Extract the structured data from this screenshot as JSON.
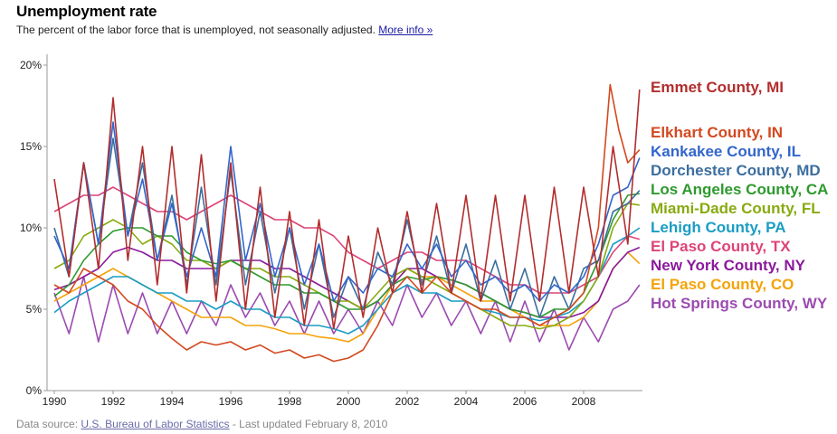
{
  "header": {
    "title": "Unemployment rate",
    "subtitle": "The percent of the labor force that is unemployed, not seasonally adjusted.",
    "more_info_link": "More info »"
  },
  "footer": {
    "source_prefix": "Data source:",
    "source_link": "U.S. Bureau of Labor Statistics",
    "updated": "- Last updated February 8, 2010"
  },
  "chart_data": {
    "type": "line",
    "title": "Unemployment rate",
    "xlabel": "",
    "ylabel": "",
    "x_ticks": [
      "1990",
      "1992",
      "1994",
      "1996",
      "1998",
      "2000",
      "2002",
      "2004",
      "2006",
      "2008"
    ],
    "y_ticks": [
      "0%",
      "5%",
      "10%",
      "15%",
      "20%"
    ],
    "xlim": [
      1990,
      2010
    ],
    "ylim": [
      0,
      20
    ],
    "grid": false,
    "legend_placement": "right (labels at line ends)",
    "series": [
      {
        "name": "Emmet County, MI",
        "color": "#b32d2d",
        "label_y": 18.6,
        "x": [
          1990.0,
          1990.5,
          1991.0,
          1991.5,
          1992.0,
          1992.5,
          1993.0,
          1993.5,
          1994.0,
          1994.5,
          1995.0,
          1995.5,
          1996.0,
          1996.5,
          1997.0,
          1997.5,
          1998.0,
          1998.5,
          1999.0,
          1999.5,
          2000.0,
          2000.5,
          2001.0,
          2001.5,
          2002.0,
          2002.5,
          2003.0,
          2003.5,
          2004.0,
          2004.5,
          2005.0,
          2005.5,
          2006.0,
          2006.5,
          2007.0,
          2007.5,
          2008.0,
          2008.5,
          2009.0,
          2009.5,
          2009.9
        ],
        "y": [
          13.0,
          7.0,
          14.0,
          7.5,
          18.0,
          8.0,
          15.0,
          6.5,
          15.0,
          6.0,
          14.5,
          5.5,
          14.0,
          5.0,
          12.5,
          4.5,
          11.0,
          4.0,
          10.5,
          3.8,
          9.5,
          4.5,
          10.0,
          6.0,
          11.0,
          6.0,
          11.5,
          6.0,
          12.0,
          5.5,
          12.0,
          5.5,
          12.0,
          5.5,
          12.5,
          6.0,
          12.5,
          7.0,
          15.0,
          9.0,
          18.5
        ]
      },
      {
        "name": "Elkhart County, IN",
        "color": "#d2491f",
        "label_y": 14.9,
        "x": [
          1990.0,
          1990.5,
          1991.0,
          1991.5,
          1992.0,
          1992.5,
          1993.0,
          1993.5,
          1994.0,
          1994.5,
          1995.0,
          1995.5,
          1996.0,
          1996.5,
          1997.0,
          1997.5,
          1998.0,
          1998.5,
          1999.0,
          1999.5,
          2000.0,
          2000.5,
          2001.0,
          2001.5,
          2002.0,
          2002.5,
          2003.0,
          2003.5,
          2004.0,
          2004.5,
          2005.0,
          2005.5,
          2006.0,
          2006.5,
          2007.0,
          2007.5,
          2008.0,
          2008.5,
          2008.9,
          2009.2,
          2009.5,
          2009.9
        ],
        "y": [
          6.5,
          6.0,
          7.5,
          7.0,
          6.5,
          5.5,
          5.0,
          4.0,
          3.2,
          2.5,
          3.0,
          2.8,
          3.0,
          2.5,
          2.8,
          2.3,
          2.5,
          2.0,
          2.2,
          1.8,
          2.0,
          2.5,
          4.0,
          6.0,
          7.0,
          6.0,
          7.0,
          6.0,
          5.5,
          5.0,
          5.0,
          4.5,
          4.5,
          4.0,
          4.5,
          5.0,
          6.0,
          10.0,
          18.8,
          16.0,
          14.0,
          14.8
        ]
      },
      {
        "name": "Kankakee County, IL",
        "color": "#3366cc",
        "label_y": 14.3,
        "x": [
          1990.0,
          1990.5,
          1991.0,
          1991.5,
          1992.0,
          1992.5,
          1993.0,
          1993.5,
          1994.0,
          1994.5,
          1995.0,
          1995.5,
          1996.0,
          1996.5,
          1997.0,
          1997.5,
          1998.0,
          1998.5,
          1999.0,
          1999.5,
          2000.0,
          2000.5,
          2001.0,
          2001.5,
          2002.0,
          2002.5,
          2003.0,
          2003.5,
          2004.0,
          2004.5,
          2005.0,
          2005.5,
          2006.0,
          2006.5,
          2007.0,
          2007.5,
          2008.0,
          2008.5,
          2009.0,
          2009.5,
          2009.9
        ],
        "y": [
          9.5,
          7.5,
          14.0,
          9.0,
          16.5,
          9.5,
          13.0,
          8.0,
          11.5,
          7.0,
          10.0,
          7.0,
          15.0,
          8.0,
          11.5,
          7.0,
          10.0,
          6.5,
          9.0,
          5.5,
          7.0,
          6.0,
          7.5,
          7.0,
          9.0,
          7.5,
          9.0,
          7.0,
          8.0,
          6.5,
          7.0,
          6.0,
          6.5,
          5.5,
          6.5,
          6.0,
          7.0,
          9.0,
          12.0,
          12.5,
          14.3
        ]
      },
      {
        "name": "Dorchester County, MD",
        "color": "#3c6e9f",
        "label_y": 12.3,
        "x": [
          1990.0,
          1990.5,
          1991.0,
          1991.5,
          1992.0,
          1992.5,
          1993.0,
          1993.5,
          1994.0,
          1994.5,
          1995.0,
          1995.5,
          1996.0,
          1996.5,
          1997.0,
          1997.5,
          1998.0,
          1998.5,
          1999.0,
          1999.5,
          2000.0,
          2000.5,
          2001.0,
          2001.5,
          2002.0,
          2002.5,
          2003.0,
          2003.5,
          2004.0,
          2004.5,
          2005.0,
          2005.5,
          2006.0,
          2006.5,
          2007.0,
          2007.5,
          2008.0,
          2008.5,
          2009.0,
          2009.5,
          2009.9
        ],
        "y": [
          10.0,
          7.0,
          14.0,
          9.0,
          15.5,
          9.5,
          14.0,
          8.0,
          12.0,
          6.5,
          12.5,
          6.5,
          13.5,
          6.5,
          11.0,
          6.0,
          10.0,
          5.0,
          9.0,
          4.5,
          7.0,
          5.0,
          8.5,
          6.5,
          10.5,
          6.5,
          9.5,
          6.0,
          9.0,
          5.5,
          8.0,
          5.0,
          7.5,
          4.5,
          7.0,
          5.0,
          7.5,
          8.0,
          11.0,
          11.5,
          12.3
        ]
      },
      {
        "name": "Los Angeles County, CA",
        "color": "#2e9a2e",
        "label_y": 12.1,
        "x": [
          1990.0,
          1990.5,
          1991.0,
          1991.5,
          1992.0,
          1992.5,
          1993.0,
          1993.5,
          1994.0,
          1994.5,
          1995.0,
          1995.5,
          1996.0,
          1996.5,
          1997.0,
          1997.5,
          1998.0,
          1998.5,
          1999.0,
          1999.5,
          2000.0,
          2000.5,
          2001.0,
          2001.5,
          2002.0,
          2002.5,
          2003.0,
          2003.5,
          2004.0,
          2004.5,
          2005.0,
          2005.5,
          2006.0,
          2006.5,
          2007.0,
          2007.5,
          2008.0,
          2008.5,
          2009.0,
          2009.5,
          2009.9
        ],
        "y": [
          5.8,
          6.5,
          8.0,
          9.0,
          9.8,
          10.0,
          10.0,
          9.5,
          9.5,
          8.5,
          8.0,
          7.8,
          8.0,
          7.5,
          7.0,
          6.5,
          6.5,
          6.0,
          6.0,
          5.5,
          5.0,
          5.0,
          5.5,
          6.5,
          7.0,
          6.8,
          7.0,
          6.8,
          6.5,
          6.0,
          5.5,
          5.0,
          4.8,
          4.5,
          5.0,
          5.0,
          6.0,
          8.0,
          10.5,
          12.0,
          12.1
        ]
      },
      {
        "name": "Miami-Dade County, FL",
        "color": "#88aa11",
        "label_y": 11.4,
        "x": [
          1990.0,
          1990.5,
          1991.0,
          1991.5,
          1992.0,
          1992.5,
          1993.0,
          1993.5,
          1994.0,
          1994.5,
          1995.0,
          1995.5,
          1996.0,
          1996.5,
          1997.0,
          1997.5,
          1998.0,
          1998.5,
          1999.0,
          1999.5,
          2000.0,
          2000.5,
          2001.0,
          2001.5,
          2002.0,
          2002.5,
          2003.0,
          2003.5,
          2004.0,
          2004.5,
          2005.0,
          2005.5,
          2006.0,
          2006.5,
          2007.0,
          2007.5,
          2008.0,
          2008.5,
          2009.0,
          2009.5,
          2009.9
        ],
        "y": [
          7.5,
          8.0,
          9.5,
          10.0,
          10.5,
          10.0,
          9.0,
          9.5,
          9.0,
          8.0,
          8.0,
          7.5,
          8.0,
          7.5,
          7.5,
          7.0,
          7.0,
          6.5,
          6.0,
          5.5,
          5.5,
          5.0,
          6.0,
          7.0,
          7.5,
          7.0,
          6.5,
          6.0,
          5.5,
          5.0,
          4.5,
          4.0,
          4.0,
          3.8,
          4.0,
          4.5,
          5.5,
          7.0,
          10.0,
          11.5,
          11.4
        ]
      },
      {
        "name": "Lehigh County, PA",
        "color": "#1a9dc4",
        "label_y": 10.2,
        "x": [
          1990.0,
          1990.5,
          1991.0,
          1991.5,
          1992.0,
          1992.5,
          1993.0,
          1993.5,
          1994.0,
          1994.5,
          1995.0,
          1995.5,
          1996.0,
          1996.5,
          1997.0,
          1997.5,
          1998.0,
          1998.5,
          1999.0,
          1999.5,
          2000.0,
          2000.5,
          2001.0,
          2001.5,
          2002.0,
          2002.5,
          2003.0,
          2003.5,
          2004.0,
          2004.5,
          2005.0,
          2005.5,
          2006.0,
          2006.5,
          2007.0,
          2007.5,
          2008.0,
          2008.5,
          2009.0,
          2009.5,
          2009.9
        ],
        "y": [
          4.8,
          5.5,
          6.0,
          6.5,
          7.0,
          7.0,
          6.5,
          6.0,
          6.0,
          5.5,
          5.5,
          5.0,
          5.5,
          5.0,
          5.0,
          4.5,
          4.5,
          4.0,
          4.0,
          3.8,
          3.5,
          4.0,
          5.0,
          6.0,
          6.5,
          6.0,
          6.0,
          5.5,
          5.5,
          5.0,
          4.8,
          4.5,
          4.5,
          4.3,
          4.5,
          4.8,
          5.5,
          7.0,
          9.0,
          9.5,
          10.0
        ]
      },
      {
        "name": "El Paso County, TX",
        "color": "#dd4477",
        "label_y": 9.5,
        "x": [
          1990.0,
          1990.5,
          1991.0,
          1991.5,
          1992.0,
          1992.5,
          1993.0,
          1993.5,
          1994.0,
          1994.5,
          1995.0,
          1995.5,
          1996.0,
          1996.5,
          1997.0,
          1997.5,
          1998.0,
          1998.5,
          1999.0,
          1999.5,
          2000.0,
          2000.5,
          2001.0,
          2001.5,
          2002.0,
          2002.5,
          2003.0,
          2003.5,
          2004.0,
          2004.5,
          2005.0,
          2005.5,
          2006.0,
          2006.5,
          2007.0,
          2007.5,
          2008.0,
          2008.5,
          2009.0,
          2009.5,
          2009.9
        ],
        "y": [
          11.0,
          11.5,
          12.0,
          12.0,
          12.5,
          12.0,
          11.5,
          11.0,
          11.0,
          10.5,
          11.0,
          11.5,
          12.0,
          11.5,
          11.0,
          10.5,
          10.5,
          10.0,
          10.0,
          9.5,
          8.5,
          8.0,
          7.5,
          8.0,
          8.5,
          8.5,
          8.0,
          8.0,
          8.0,
          7.5,
          7.0,
          6.5,
          6.5,
          6.0,
          6.0,
          6.0,
          6.5,
          7.0,
          8.5,
          9.5,
          9.3
        ]
      },
      {
        "name": "New York County, NY",
        "color": "#8a1a9b",
        "label_y": 8.8,
        "x": [
          1990.0,
          1990.5,
          1991.0,
          1991.5,
          1992.0,
          1992.5,
          1993.0,
          1993.5,
          1994.0,
          1994.5,
          1995.0,
          1995.5,
          1996.0,
          1996.5,
          1997.0,
          1997.5,
          1998.0,
          1998.5,
          1999.0,
          1999.5,
          2000.0,
          2000.5,
          2001.0,
          2001.5,
          2002.0,
          2002.5,
          2003.0,
          2003.5,
          2004.0,
          2004.5,
          2005.0,
          2005.5,
          2006.0,
          2006.5,
          2007.0,
          2007.5,
          2008.0,
          2008.5,
          2009.0,
          2009.5,
          2009.9
        ],
        "y": [
          6.2,
          6.5,
          7.0,
          7.5,
          8.5,
          8.8,
          8.5,
          8.0,
          8.0,
          7.5,
          7.5,
          7.5,
          8.0,
          8.0,
          8.0,
          7.5,
          7.5,
          7.0,
          6.5,
          6.0,
          5.5,
          5.0,
          5.5,
          6.5,
          7.5,
          7.5,
          7.0,
          6.8,
          6.5,
          6.0,
          5.5,
          5.0,
          4.8,
          4.5,
          4.5,
          4.5,
          4.8,
          5.5,
          7.5,
          8.5,
          8.8
        ]
      },
      {
        "name": "El Paso County, CO",
        "color": "#f4a30a",
        "label_y": 8.0,
        "x": [
          1990.0,
          1990.5,
          1991.0,
          1991.5,
          1992.0,
          1992.5,
          1993.0,
          1993.5,
          1994.0,
          1994.5,
          1995.0,
          1995.5,
          1996.0,
          1996.5,
          1997.0,
          1997.5,
          1998.0,
          1998.5,
          1999.0,
          1999.5,
          2000.0,
          2000.5,
          2001.0,
          2001.5,
          2002.0,
          2002.5,
          2003.0,
          2003.5,
          2004.0,
          2004.5,
          2005.0,
          2005.5,
          2006.0,
          2006.5,
          2007.0,
          2007.5,
          2008.0,
          2008.5,
          2009.0,
          2009.5,
          2009.9
        ],
        "y": [
          5.5,
          6.0,
          6.5,
          7.0,
          7.5,
          7.0,
          6.5,
          6.0,
          5.5,
          5.0,
          4.5,
          4.5,
          4.5,
          4.0,
          4.0,
          3.8,
          3.5,
          3.5,
          3.3,
          3.2,
          3.0,
          3.5,
          5.0,
          6.5,
          7.5,
          7.0,
          7.0,
          6.5,
          6.0,
          5.5,
          5.5,
          5.0,
          4.5,
          4.0,
          4.0,
          4.0,
          4.5,
          5.5,
          7.5,
          8.5,
          7.8
        ]
      },
      {
        "name": "Hot Springs County, WY",
        "color": "#9c4bb0",
        "label_y": 6.6,
        "x": [
          1990.0,
          1990.5,
          1991.0,
          1991.5,
          1992.0,
          1992.5,
          1993.0,
          1993.5,
          1994.0,
          1994.5,
          1995.0,
          1995.5,
          1996.0,
          1996.5,
          1997.0,
          1997.5,
          1998.0,
          1998.5,
          1999.0,
          1999.5,
          2000.0,
          2000.5,
          2001.0,
          2001.5,
          2002.0,
          2002.5,
          2003.0,
          2003.5,
          2004.0,
          2004.5,
          2005.0,
          2005.5,
          2006.0,
          2006.5,
          2007.0,
          2007.5,
          2008.0,
          2008.5,
          2009.0,
          2009.5,
          2009.9
        ],
        "y": [
          6.0,
          3.5,
          7.0,
          3.0,
          6.5,
          3.5,
          6.0,
          3.5,
          5.5,
          3.5,
          5.5,
          4.0,
          6.5,
          4.5,
          6.0,
          4.0,
          5.5,
          3.5,
          5.5,
          3.5,
          5.0,
          3.5,
          5.5,
          4.0,
          6.5,
          4.5,
          6.0,
          4.0,
          5.5,
          3.5,
          5.5,
          3.0,
          5.5,
          3.0,
          5.0,
          2.5,
          4.5,
          3.0,
          5.0,
          5.5,
          6.5
        ]
      }
    ]
  }
}
